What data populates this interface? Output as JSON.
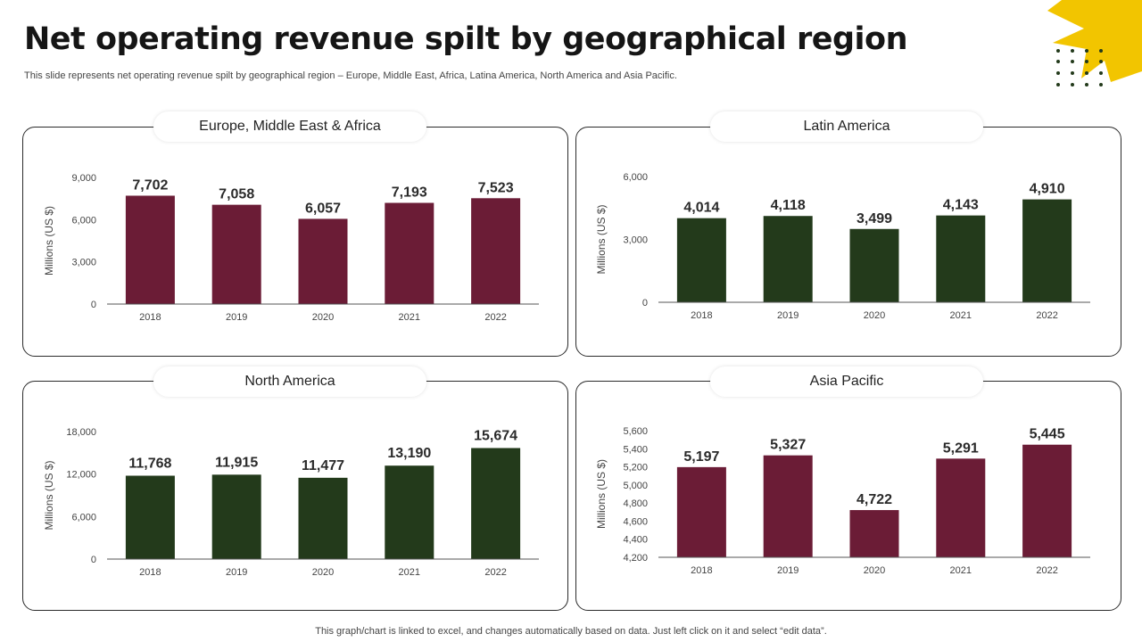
{
  "page": {
    "title": "Net operating revenue spilt by geographical region",
    "subtitle": "This slide represents net operating revenue spilt by geographical region – Europe, Middle East, Africa, Latina America, North America and Asia Pacific.",
    "footer": "This graph/chart is linked to excel,  and changes automatically based on data. Just left click on it and select “edit data”."
  },
  "colors": {
    "maroon": "#6B1C36",
    "green": "#233A1B",
    "accent": "#F2C500",
    "dots": "#233A1B"
  },
  "chart_data": [
    {
      "type": "bar",
      "title": "Europe, Middle East & Africa",
      "ylabel": "Millions (US $)",
      "categories": [
        "2018",
        "2019",
        "2020",
        "2021",
        "2022"
      ],
      "values": [
        7702,
        7058,
        6057,
        7193,
        7523
      ],
      "value_labels": [
        "7,702",
        "7,058",
        "6,057",
        "7,193",
        "7,523"
      ],
      "ylim": [
        0,
        9000
      ],
      "yticks": [
        0,
        3000,
        6000,
        9000
      ],
      "ytick_labels": [
        "0",
        "3,000",
        "6,000",
        "9,000"
      ],
      "color": "#6B1C36"
    },
    {
      "type": "bar",
      "title": "Latin America",
      "ylabel": "Millions (US $)",
      "categories": [
        "2018",
        "2019",
        "2020",
        "2021",
        "2022"
      ],
      "values": [
        4014,
        4118,
        3499,
        4143,
        4910
      ],
      "value_labels": [
        "4,014",
        "4,118",
        "3,499",
        "4,143",
        "4,910"
      ],
      "ylim": [
        0,
        6000
      ],
      "yticks": [
        0,
        3000,
        6000
      ],
      "ytick_labels": [
        "0",
        "3,000",
        "6,000"
      ],
      "color": "#233A1B"
    },
    {
      "type": "bar",
      "title": "North America",
      "ylabel": "Millions (US $)",
      "categories": [
        "2018",
        "2019",
        "2020",
        "2021",
        "2022"
      ],
      "values": [
        11768,
        11915,
        11477,
        13190,
        15674
      ],
      "value_labels": [
        "11,768",
        "11,915",
        "11,477",
        "13,190",
        "15,674"
      ],
      "ylim": [
        0,
        18000
      ],
      "yticks": [
        0,
        6000,
        12000,
        18000
      ],
      "ytick_labels": [
        "0",
        "6,000",
        "12,000",
        "18,000"
      ],
      "color": "#233A1B"
    },
    {
      "type": "bar",
      "title": "Asia Pacific",
      "ylabel": "Millions (US $)",
      "categories": [
        "2018",
        "2019",
        "2020",
        "2021",
        "2022"
      ],
      "values": [
        5197,
        5327,
        4722,
        5291,
        5445
      ],
      "value_labels": [
        "5,197",
        "5,327",
        "4,722",
        "5,291",
        "5,445"
      ],
      "ylim": [
        4200,
        5600
      ],
      "yticks": [
        4200,
        4400,
        4600,
        4800,
        5000,
        5200,
        5400,
        5600
      ],
      "ytick_labels": [
        "4,200",
        "4,400",
        "4,600",
        "4,800",
        "5,000",
        "5,200",
        "5,400",
        "5,600"
      ],
      "color": "#6B1C36"
    }
  ]
}
